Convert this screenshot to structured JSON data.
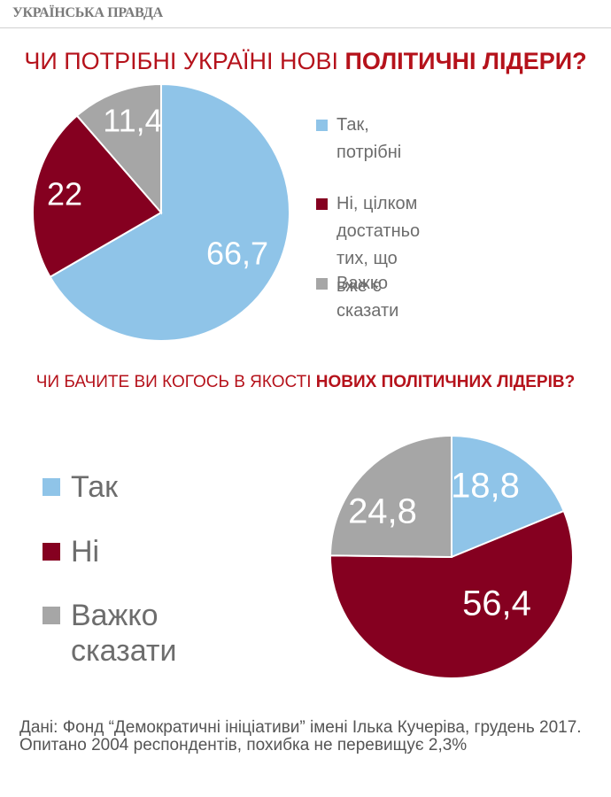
{
  "header": {
    "logo": "УКРАЇНСЬКА ПРАВДА"
  },
  "colors": {
    "accent": "#b5121b",
    "light_blue": "#8fc4e8",
    "dark_red": "#850020",
    "gray": "#a6a6a6"
  },
  "chart_data": [
    {
      "type": "pie",
      "title_part1": "ЧИ ПОТРІБНІ УКРАЇНІ НОВІ ",
      "title_part2": "ПОЛІТИЧНІ ЛІДЕРИ?",
      "legend_position": "right",
      "slices": [
        {
          "label": "Так, потрібні",
          "value": 66.7,
          "value_label": "66,7",
          "color": "#8fc4e8"
        },
        {
          "label": "Ні, цілком достатньо\nтих, що вже є",
          "value": 22,
          "value_label": "22",
          "color": "#850020"
        },
        {
          "label": "Важко сказати",
          "value": 11.4,
          "value_label": "11,4",
          "color": "#a6a6a6"
        }
      ]
    },
    {
      "type": "pie",
      "title_part1": "ЧИ БАЧИТЕ ВИ КОГОСЬ В ЯКОСТІ ",
      "title_part2": "НОВИХ ПОЛІТИЧНИХ ЛІДЕРІВ?",
      "legend_position": "left",
      "slices": [
        {
          "label": "Так",
          "value": 18.8,
          "value_label": "18,8",
          "color": "#8fc4e8"
        },
        {
          "label": "Ні",
          "value": 56.4,
          "value_label": "56,4",
          "color": "#850020"
        },
        {
          "label": "Важко сказати",
          "value": 24.8,
          "value_label": "24,8",
          "color": "#a6a6a6"
        }
      ]
    }
  ],
  "source": "Дані: Фонд “Демократичні ініціативи” імені Ілька Кучеріва, грудень 2017. Опитано 2004 респондентів, похибка не перевищує 2,3%"
}
